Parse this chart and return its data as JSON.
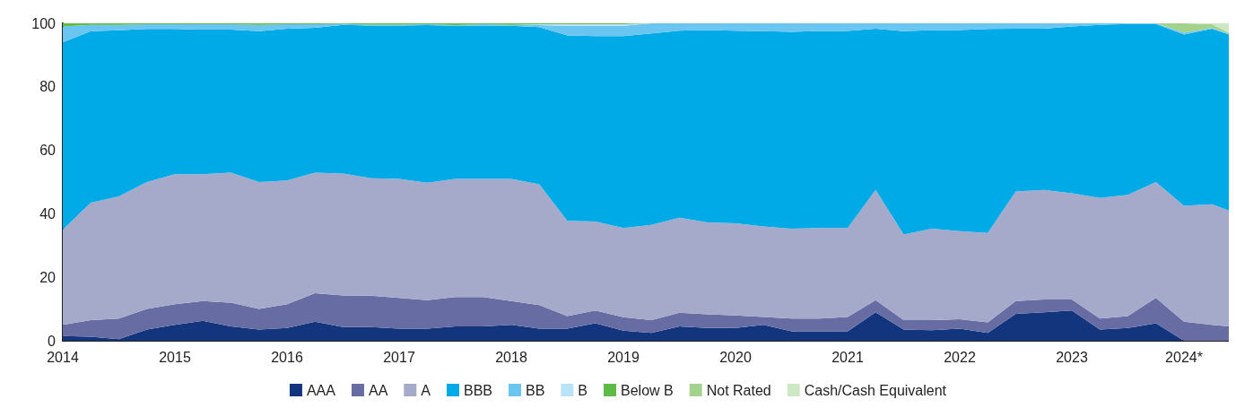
{
  "chart_data": {
    "type": "area",
    "stacked": true,
    "legend": "bottom",
    "grid": false,
    "x": [
      2014,
      2014.25,
      2014.5,
      2014.75,
      2015,
      2015.25,
      2015.5,
      2015.75,
      2016,
      2016.25,
      2016.5,
      2016.75,
      2017,
      2017.25,
      2017.5,
      2017.75,
      2018,
      2018.25,
      2018.5,
      2018.75,
      2019,
      2019.25,
      2019.5,
      2019.75,
      2020,
      2020.25,
      2020.5,
      2020.75,
      2021,
      2021.25,
      2021.5,
      2021.75,
      2022,
      2022.25,
      2022.5,
      2022.75,
      2023,
      2023.25,
      2023.5,
      2023.75,
      2024,
      2024.25,
      2024.4
    ],
    "xlim": [
      2014,
      2024.4
    ],
    "xticks": [
      2014,
      2015,
      2016,
      2017,
      2018,
      2019,
      2020,
      2021,
      2022,
      2023,
      {
        "value": 2024,
        "label": "2024*"
      }
    ],
    "ylim": [
      0,
      100
    ],
    "yticks": [
      0,
      20,
      40,
      60,
      80,
      100
    ],
    "series": [
      {
        "name": "AAA",
        "color": "#12357e",
        "values": [
          1.5,
          1.3,
          0.5,
          3.5,
          5,
          6.3,
          4.5,
          3.5,
          4,
          6,
          4.3,
          4.3,
          3.8,
          3.8,
          4.5,
          4.5,
          5,
          3.8,
          3.8,
          5.5,
          3.2,
          2.5,
          4.5,
          4,
          4,
          5,
          3,
          3,
          3,
          9,
          3.5,
          3.3,
          3.8,
          2.5,
          8.5,
          9,
          9.5,
          3.5,
          4,
          5.5,
          0,
          0,
          0
        ]
      },
      {
        "name": "AA",
        "color": "#676da2",
        "values": [
          3.5,
          5.2,
          6.5,
          6.5,
          6.5,
          6.2,
          7.5,
          6.5,
          7.5,
          9,
          10,
          9.9,
          9.7,
          9,
          9.3,
          9.3,
          7.5,
          7.4,
          4,
          4,
          4.2,
          4,
          4.3,
          4.3,
          4,
          2.5,
          4,
          4,
          4.5,
          3.8,
          3,
          3.2,
          3,
          3.3,
          4,
          4,
          3.5,
          3.5,
          3.8,
          8,
          6,
          5,
          4.5
        ]
      },
      {
        "name": "A",
        "color": "#a5a9ca",
        "values": [
          30,
          37,
          38.5,
          40,
          41,
          40,
          41,
          40,
          39,
          38,
          38.4,
          37,
          37.5,
          37,
          37.2,
          37.2,
          38.5,
          38.1,
          30,
          28.1,
          28.1,
          30,
          30,
          29,
          29,
          28.5,
          28.3,
          28.5,
          28,
          34.7,
          27,
          28.8,
          27.7,
          28.2,
          34.5,
          34.5,
          33.5,
          38,
          38.2,
          36.5,
          36.5,
          38,
          36.5
        ]
      },
      {
        "name": "BBB",
        "color": "#00aae6",
        "values": [
          59,
          54,
          52.3,
          48.2,
          45.7,
          45.5,
          45,
          47.5,
          47.8,
          45.6,
          46.8,
          48.1,
          48.3,
          49.6,
          48.2,
          48.3,
          48.2,
          49.5,
          58.4,
          58.4,
          60.5,
          60.3,
          58.9,
          60.6,
          60.7,
          61.5,
          62,
          62.1,
          62.1,
          50.8,
          64,
          62.6,
          63.4,
          64.2,
          51.3,
          50.8,
          52.5,
          54.5,
          53.8,
          49.8,
          54,
          55.3,
          55.5
        ]
      },
      {
        "name": "BB",
        "color": "#6ac5f0",
        "values": [
          5,
          2,
          1.7,
          1.5,
          1.5,
          1.7,
          1.7,
          2,
          1.4,
          1.1,
          0.3,
          0.3,
          0.3,
          0.3,
          0.2,
          0.4,
          0.3,
          0.6,
          3,
          3.2,
          3.2,
          3.2,
          2.3,
          2.1,
          2.3,
          2.5,
          2.7,
          2.4,
          2.4,
          1.7,
          2.5,
          2.1,
          2.1,
          1.8,
          1.7,
          1.7,
          1,
          0.5,
          0.2,
          0.2,
          0.5,
          0.2,
          0.3
        ]
      },
      {
        "name": "B",
        "color": "#b9e3f8",
        "values": [
          null,
          null,
          null,
          null,
          null,
          null,
          null,
          null,
          null,
          null,
          null,
          null,
          null,
          null,
          null,
          null,
          0,
          0.3,
          0.5,
          0.5,
          0.5,
          0,
          null,
          null,
          null,
          null,
          null,
          null,
          null,
          null,
          null,
          null,
          null,
          null,
          null,
          null,
          null,
          null,
          null,
          null,
          null,
          null,
          null
        ]
      },
      {
        "name": "Below B",
        "color": "#5dbb46",
        "values": [
          1,
          0.5,
          0.5,
          0.3,
          0.3,
          0.3,
          0.3,
          0.5,
          0.3,
          0.3,
          0.2,
          0.4,
          0.4,
          0.3,
          0.6,
          0.3,
          0.5,
          0.3,
          0.3,
          0.3,
          0.3,
          0,
          null,
          null,
          null,
          null,
          null,
          null,
          null,
          null,
          null,
          null,
          null,
          null,
          null,
          null,
          null,
          null,
          null,
          null,
          null,
          null,
          null
        ]
      },
      {
        "name": "Not Rated",
        "color": "#a3d28c",
        "values": [
          null,
          null,
          null,
          null,
          null,
          null,
          null,
          null,
          null,
          null,
          null,
          null,
          null,
          null,
          null,
          null,
          null,
          null,
          null,
          null,
          null,
          null,
          null,
          null,
          null,
          null,
          null,
          null,
          null,
          null,
          null,
          null,
          null,
          null,
          null,
          null,
          null,
          null,
          null,
          0,
          3,
          1.2,
          0.2
        ]
      },
      {
        "name": "Cash/Cash Equivalent",
        "color": "#cfe8c4",
        "values": [
          null,
          null,
          null,
          null,
          null,
          null,
          null,
          null,
          null,
          null,
          null,
          null,
          null,
          null,
          null,
          null,
          null,
          null,
          null,
          null,
          null,
          null,
          null,
          null,
          null,
          null,
          null,
          null,
          null,
          null,
          null,
          null,
          null,
          null,
          null,
          null,
          null,
          null,
          null,
          null,
          0,
          0.3,
          3
        ]
      }
    ]
  }
}
